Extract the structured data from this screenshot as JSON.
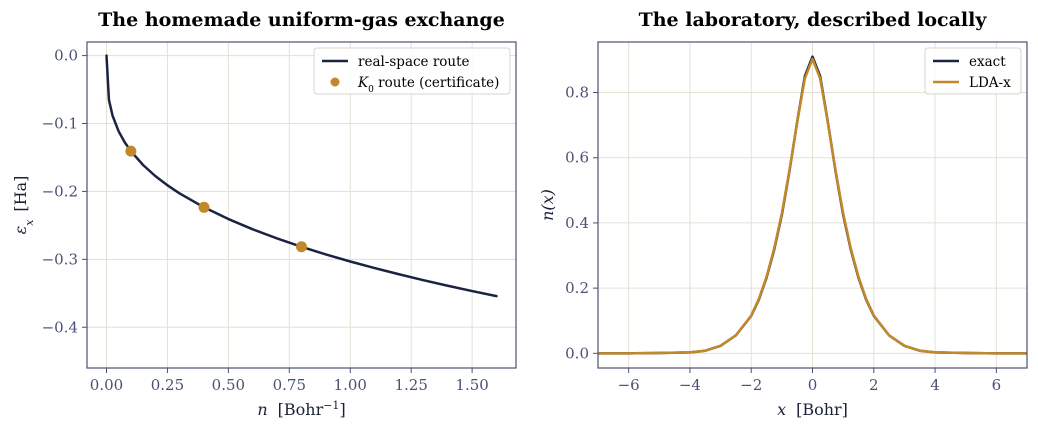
{
  "colors": {
    "navy": "#1b2341",
    "gold": "#c2892a",
    "grid": "#e4e0d4",
    "axis": "#4a5272"
  },
  "chart_data": [
    {
      "type": "line",
      "title": "The homemade uniform-gas exchange",
      "xlabel_var": "n",
      "xlabel_unit": "[Bohr",
      "xlabel_exp": "−1",
      "xlabel_close": "]",
      "ylabel_var": "ε",
      "ylabel_sub": "x",
      "ylabel_unit": "[Ha]",
      "xlim": [
        -0.08,
        1.68
      ],
      "ylim": [
        -0.46,
        0.02
      ],
      "xticks": [
        0.0,
        0.25,
        0.5,
        0.75,
        1.0,
        1.25,
        1.5
      ],
      "xtick_labels": [
        "0.00",
        "0.25",
        "0.50",
        "0.75",
        "1.00",
        "1.25",
        "1.50"
      ],
      "yticks": [
        0.0,
        -0.1,
        -0.2,
        -0.3,
        -0.4
      ],
      "ytick_labels": [
        "0.0",
        "−0.1",
        "−0.2",
        "−0.3",
        "−0.4"
      ],
      "grid": true,
      "legend_position": "top-right",
      "series": [
        {
          "name": "real-space route",
          "kind": "line",
          "color": "#1b2341",
          "x": [
            0.0,
            0.01,
            0.025,
            0.05,
            0.075,
            0.1,
            0.15,
            0.2,
            0.25,
            0.3,
            0.4,
            0.5,
            0.6,
            0.7,
            0.8,
            0.9,
            1.0,
            1.1,
            1.2,
            1.3,
            1.4,
            1.5,
            1.6
          ],
          "y": [
            0.0,
            -0.0653,
            -0.0886,
            -0.1117,
            -0.1278,
            -0.1407,
            -0.1611,
            -0.1773,
            -0.191,
            -0.203,
            -0.2234,
            -0.2407,
            -0.2558,
            -0.2693,
            -0.2815,
            -0.2928,
            -0.3032,
            -0.3129,
            -0.322,
            -0.3307,
            -0.3389,
            -0.3467,
            -0.3542
          ]
        },
        {
          "name": "K",
          "name_sub": "0",
          "name_rest": " route (certificate)",
          "kind": "scatter",
          "color": "#c2892a",
          "x": [
            0.1,
            0.4,
            0.8
          ],
          "y": [
            -0.1407,
            -0.2234,
            -0.2815
          ]
        }
      ]
    },
    {
      "type": "line",
      "title": "The laboratory, described locally",
      "xlabel_var": "x",
      "xlabel_unit": "[Bohr]",
      "ylabel_var": "n(x)",
      "xlim": [
        -7,
        7
      ],
      "ylim": [
        -0.045,
        0.955
      ],
      "xticks": [
        -6,
        -4,
        -2,
        0,
        2,
        4,
        6
      ],
      "xtick_labels": [
        "−6",
        "−4",
        "−2",
        "0",
        "2",
        "4",
        "6"
      ],
      "yticks": [
        0.0,
        0.2,
        0.4,
        0.6,
        0.8
      ],
      "ytick_labels": [
        "0.0",
        "0.2",
        "0.4",
        "0.6",
        "0.8"
      ],
      "grid": true,
      "legend_position": "top-right",
      "series": [
        {
          "name": "exact",
          "kind": "line",
          "color": "#1b2341",
          "x": [
            -7,
            -6,
            -5,
            -4,
            -3.5,
            -3,
            -2.5,
            -2,
            -1.75,
            -1.5,
            -1.25,
            -1,
            -0.75,
            -0.5,
            -0.25,
            0,
            0.25,
            0.5,
            0.75,
            1,
            1.25,
            1.5,
            1.75,
            2,
            2.5,
            3,
            3.5,
            4,
            5,
            6,
            7
          ],
          "y": [
            0.0,
            0.0,
            0.001,
            0.003,
            0.008,
            0.023,
            0.055,
            0.115,
            0.165,
            0.232,
            0.318,
            0.425,
            0.56,
            0.71,
            0.85,
            0.91,
            0.85,
            0.71,
            0.56,
            0.425,
            0.318,
            0.232,
            0.165,
            0.115,
            0.055,
            0.023,
            0.008,
            0.003,
            0.001,
            0.0,
            0.0
          ]
        },
        {
          "name": "LDA-x",
          "kind": "line",
          "color": "#c2892a",
          "x": [
            -7,
            -6,
            -5,
            -4,
            -3.5,
            -3,
            -2.5,
            -2,
            -1.75,
            -1.5,
            -1.25,
            -1,
            -0.75,
            -0.5,
            -0.25,
            0,
            0.25,
            0.5,
            0.75,
            1,
            1.25,
            1.5,
            1.75,
            2,
            2.5,
            3,
            3.5,
            4,
            5,
            6,
            7
          ],
          "y": [
            0.0,
            0.0,
            0.001,
            0.003,
            0.008,
            0.023,
            0.055,
            0.116,
            0.167,
            0.235,
            0.322,
            0.43,
            0.563,
            0.708,
            0.843,
            0.903,
            0.843,
            0.708,
            0.563,
            0.43,
            0.322,
            0.235,
            0.167,
            0.116,
            0.055,
            0.023,
            0.008,
            0.003,
            0.001,
            0.0,
            0.0
          ]
        }
      ]
    }
  ]
}
